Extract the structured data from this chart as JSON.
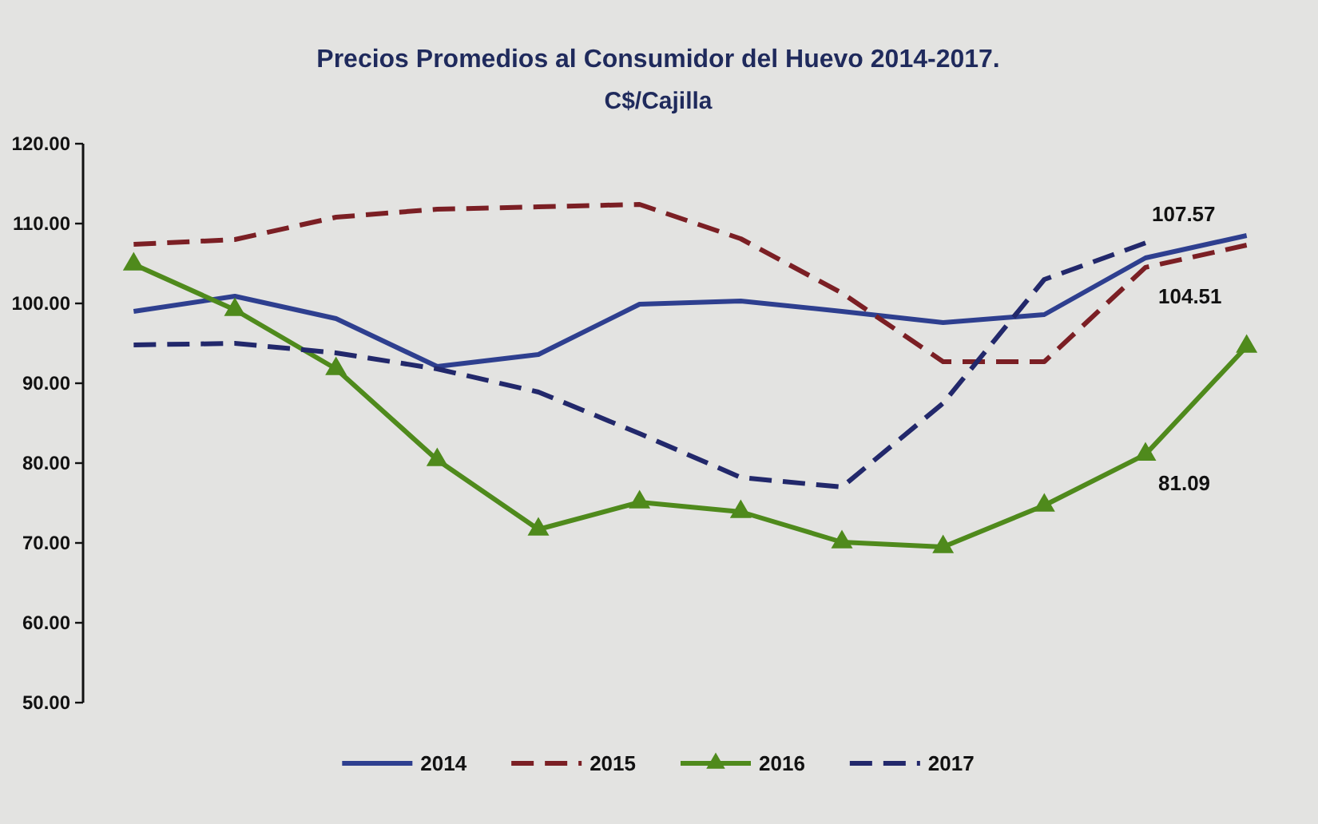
{
  "chart_data": {
    "type": "line",
    "title": "Precios Promedios al Consumidor del Huevo 2014-2017.",
    "subtitle": "C$/Cajilla",
    "categories": [
      null,
      null,
      null,
      null,
      null,
      null,
      null,
      null,
      null,
      null,
      null,
      null
    ],
    "ylim": [
      50,
      120
    ],
    "yticks": [
      {
        "value": 50,
        "label": "50.00"
      },
      {
        "value": 60,
        "label": "60.00"
      },
      {
        "value": 70,
        "label": "70.00"
      },
      {
        "value": 80,
        "label": "80.00"
      },
      {
        "value": 90,
        "label": "90.00"
      },
      {
        "value": 100,
        "label": "100.00"
      },
      {
        "value": 110,
        "label": "110.00"
      },
      {
        "value": 120,
        "label": "120.00"
      }
    ],
    "tick_labels": "y",
    "legend": "bottom",
    "series": [
      {
        "name": "2014",
        "color": "#2e3f8f",
        "line_style": "solid",
        "marker": "none",
        "values": [
          99.0,
          100.9,
          98.1,
          92.1,
          93.6,
          99.9,
          100.3,
          99.0,
          97.6,
          98.6,
          105.7,
          108.5
        ]
      },
      {
        "name": "2015",
        "color": "#7b1f24",
        "line_style": "dashed",
        "marker": "none",
        "values": [
          107.4,
          108.0,
          110.8,
          111.8,
          112.1,
          112.4,
          108.1,
          101.3,
          92.7,
          92.7,
          104.51,
          107.3
        ],
        "value_labels": [
          null,
          null,
          null,
          null,
          null,
          null,
          null,
          null,
          null,
          null,
          "104.51",
          null
        ]
      },
      {
        "name": "2016",
        "color": "#4f8a1c",
        "line_style": "solid",
        "marker": "triangle",
        "values": [
          104.9,
          99.2,
          91.8,
          80.4,
          71.7,
          75.1,
          73.9,
          70.1,
          69.5,
          74.7,
          81.09,
          94.6
        ],
        "value_labels": [
          null,
          null,
          null,
          null,
          null,
          null,
          null,
          null,
          null,
          null,
          "81.09",
          null
        ]
      },
      {
        "name": "2017",
        "color": "#22286b",
        "line_style": "dashed",
        "marker": "none",
        "values": [
          94.8,
          95.0,
          93.8,
          91.8,
          88.9,
          83.7,
          78.2,
          77.0,
          87.5,
          103.0,
          107.57,
          null
        ],
        "value_labels": [
          null,
          null,
          null,
          null,
          null,
          null,
          null,
          null,
          null,
          null,
          "107.57",
          null
        ]
      }
    ]
  }
}
